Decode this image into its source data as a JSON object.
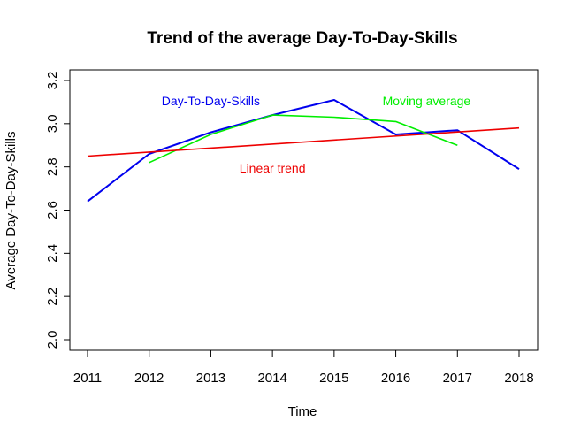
{
  "chart_data": {
    "type": "line",
    "title": "Trend of the average Day-To-Day-Skills",
    "xlabel": "Time",
    "ylabel": "Average Day-To-Day-Skills",
    "x": [
      2011,
      2012,
      2013,
      2014,
      2015,
      2016,
      2017,
      2018
    ],
    "xlim": [
      2011,
      2018
    ],
    "ylim": [
      2.0,
      3.2
    ],
    "yticks": [
      "2.0",
      "2.2",
      "2.4",
      "2.6",
      "2.8",
      "3.0",
      "3.2"
    ],
    "xticks": [
      "2011",
      "2012",
      "2013",
      "2014",
      "2015",
      "2016",
      "2017",
      "2018"
    ],
    "grid": false,
    "legend": "none",
    "series": [
      {
        "name": "Day-To-Day-Skills",
        "color": "#0000EE",
        "x": [
          2011,
          2012,
          2013,
          2014,
          2015,
          2016,
          2017,
          2018
        ],
        "values": [
          2.64,
          2.86,
          2.96,
          3.04,
          3.11,
          2.95,
          2.97,
          2.79
        ]
      },
      {
        "name": "Moving average",
        "color": "#00EE00",
        "x": [
          2012,
          2013,
          2014,
          2015,
          2016,
          2017
        ],
        "values": [
          2.82,
          2.95,
          3.04,
          3.03,
          3.01,
          2.9
        ]
      },
      {
        "name": "Linear trend",
        "color": "#EE0000",
        "x": [
          2011,
          2018
        ],
        "values": [
          2.85,
          2.98
        ]
      }
    ],
    "annotations": [
      {
        "text": "Day-To-Day-Skills",
        "color": "#0000EE",
        "x": 2013.0,
        "y": 3.1
      },
      {
        "text": "Moving average",
        "color": "#00EE00",
        "x": 2016.5,
        "y": 3.1
      },
      {
        "text": "Linear trend",
        "color": "#EE0000",
        "x": 2014.0,
        "y": 2.79
      }
    ]
  }
}
